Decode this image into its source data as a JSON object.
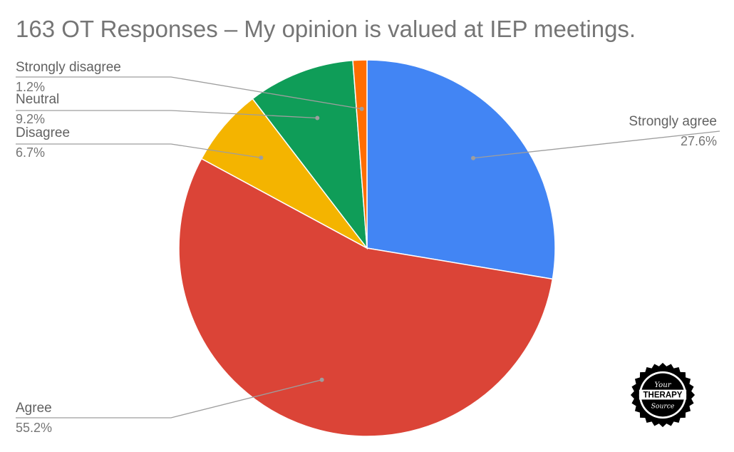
{
  "chart_data": {
    "type": "pie",
    "title": "163 OT Responses – My opinion is valued at IEP meetings.",
    "slices": [
      {
        "label": "Strongly agree",
        "value": 27.6,
        "value_label": "27.6%",
        "color": "#4285F4"
      },
      {
        "label": "Agree",
        "value": 55.2,
        "value_label": "55.2%",
        "color": "#DB4437"
      },
      {
        "label": "Disagree",
        "value": 6.7,
        "value_label": "6.7%",
        "color": "#F4B400"
      },
      {
        "label": "Neutral",
        "value": 9.2,
        "value_label": "9.2%",
        "color": "#0F9D58"
      },
      {
        "label": "Strongly disagree",
        "value": 1.2,
        "value_label": "1.2%",
        "color": "#FF6D01"
      }
    ],
    "legend": "none",
    "label_style": "leader-lines"
  },
  "logo": {
    "line1": "Your",
    "line2": "THERAPY",
    "line3": "Source"
  }
}
